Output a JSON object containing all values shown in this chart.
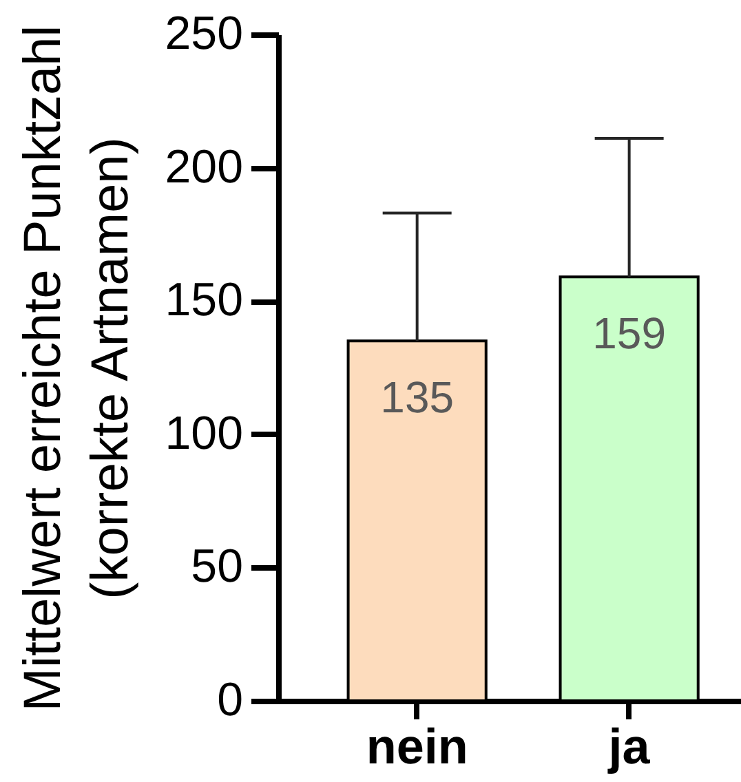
{
  "chart_data": {
    "type": "bar",
    "categories": [
      "nein",
      "ja"
    ],
    "values": [
      135,
      159
    ],
    "colors": [
      "#fddcbd",
      "#caffca"
    ],
    "errors": [
      [
        135,
        183
      ],
      [
        159,
        211
      ]
    ],
    "ylabel": "Mittelwert erreichte Punktzahl\n(korrekte Artnamen)",
    "ylim": [
      0,
      250
    ],
    "yticks": [
      0,
      50,
      100,
      150,
      200,
      250
    ],
    "data_labels": true
  }
}
